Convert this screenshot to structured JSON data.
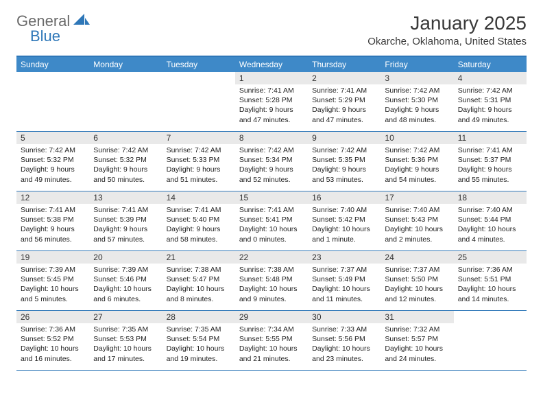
{
  "brand": {
    "text1": "General",
    "text2": "Blue"
  },
  "title": "January 2025",
  "location": "Okarche, Oklahoma, United States",
  "colors": {
    "header_bar": "#3e89c8",
    "rule": "#2e77b8",
    "daynum_bg": "#e9e9e9",
    "logo_gray": "#6a6a6a",
    "logo_blue": "#2e77b8"
  },
  "day_names": [
    "Sunday",
    "Monday",
    "Tuesday",
    "Wednesday",
    "Thursday",
    "Friday",
    "Saturday"
  ],
  "weeks": [
    [
      null,
      null,
      null,
      {
        "n": "1",
        "sr": "7:41 AM",
        "ss": "5:28 PM",
        "dl1": "Daylight: 9 hours",
        "dl2": "and 47 minutes."
      },
      {
        "n": "2",
        "sr": "7:41 AM",
        "ss": "5:29 PM",
        "dl1": "Daylight: 9 hours",
        "dl2": "and 47 minutes."
      },
      {
        "n": "3",
        "sr": "7:42 AM",
        "ss": "5:30 PM",
        "dl1": "Daylight: 9 hours",
        "dl2": "and 48 minutes."
      },
      {
        "n": "4",
        "sr": "7:42 AM",
        "ss": "5:31 PM",
        "dl1": "Daylight: 9 hours",
        "dl2": "and 49 minutes."
      }
    ],
    [
      {
        "n": "5",
        "sr": "7:42 AM",
        "ss": "5:32 PM",
        "dl1": "Daylight: 9 hours",
        "dl2": "and 49 minutes."
      },
      {
        "n": "6",
        "sr": "7:42 AM",
        "ss": "5:32 PM",
        "dl1": "Daylight: 9 hours",
        "dl2": "and 50 minutes."
      },
      {
        "n": "7",
        "sr": "7:42 AM",
        "ss": "5:33 PM",
        "dl1": "Daylight: 9 hours",
        "dl2": "and 51 minutes."
      },
      {
        "n": "8",
        "sr": "7:42 AM",
        "ss": "5:34 PM",
        "dl1": "Daylight: 9 hours",
        "dl2": "and 52 minutes."
      },
      {
        "n": "9",
        "sr": "7:42 AM",
        "ss": "5:35 PM",
        "dl1": "Daylight: 9 hours",
        "dl2": "and 53 minutes."
      },
      {
        "n": "10",
        "sr": "7:42 AM",
        "ss": "5:36 PM",
        "dl1": "Daylight: 9 hours",
        "dl2": "and 54 minutes."
      },
      {
        "n": "11",
        "sr": "7:41 AM",
        "ss": "5:37 PM",
        "dl1": "Daylight: 9 hours",
        "dl2": "and 55 minutes."
      }
    ],
    [
      {
        "n": "12",
        "sr": "7:41 AM",
        "ss": "5:38 PM",
        "dl1": "Daylight: 9 hours",
        "dl2": "and 56 minutes."
      },
      {
        "n": "13",
        "sr": "7:41 AM",
        "ss": "5:39 PM",
        "dl1": "Daylight: 9 hours",
        "dl2": "and 57 minutes."
      },
      {
        "n": "14",
        "sr": "7:41 AM",
        "ss": "5:40 PM",
        "dl1": "Daylight: 9 hours",
        "dl2": "and 58 minutes."
      },
      {
        "n": "15",
        "sr": "7:41 AM",
        "ss": "5:41 PM",
        "dl1": "Daylight: 10 hours",
        "dl2": "and 0 minutes."
      },
      {
        "n": "16",
        "sr": "7:40 AM",
        "ss": "5:42 PM",
        "dl1": "Daylight: 10 hours",
        "dl2": "and 1 minute."
      },
      {
        "n": "17",
        "sr": "7:40 AM",
        "ss": "5:43 PM",
        "dl1": "Daylight: 10 hours",
        "dl2": "and 2 minutes."
      },
      {
        "n": "18",
        "sr": "7:40 AM",
        "ss": "5:44 PM",
        "dl1": "Daylight: 10 hours",
        "dl2": "and 4 minutes."
      }
    ],
    [
      {
        "n": "19",
        "sr": "7:39 AM",
        "ss": "5:45 PM",
        "dl1": "Daylight: 10 hours",
        "dl2": "and 5 minutes."
      },
      {
        "n": "20",
        "sr": "7:39 AM",
        "ss": "5:46 PM",
        "dl1": "Daylight: 10 hours",
        "dl2": "and 6 minutes."
      },
      {
        "n": "21",
        "sr": "7:38 AM",
        "ss": "5:47 PM",
        "dl1": "Daylight: 10 hours",
        "dl2": "and 8 minutes."
      },
      {
        "n": "22",
        "sr": "7:38 AM",
        "ss": "5:48 PM",
        "dl1": "Daylight: 10 hours",
        "dl2": "and 9 minutes."
      },
      {
        "n": "23",
        "sr": "7:37 AM",
        "ss": "5:49 PM",
        "dl1": "Daylight: 10 hours",
        "dl2": "and 11 minutes."
      },
      {
        "n": "24",
        "sr": "7:37 AM",
        "ss": "5:50 PM",
        "dl1": "Daylight: 10 hours",
        "dl2": "and 12 minutes."
      },
      {
        "n": "25",
        "sr": "7:36 AM",
        "ss": "5:51 PM",
        "dl1": "Daylight: 10 hours",
        "dl2": "and 14 minutes."
      }
    ],
    [
      {
        "n": "26",
        "sr": "7:36 AM",
        "ss": "5:52 PM",
        "dl1": "Daylight: 10 hours",
        "dl2": "and 16 minutes."
      },
      {
        "n": "27",
        "sr": "7:35 AM",
        "ss": "5:53 PM",
        "dl1": "Daylight: 10 hours",
        "dl2": "and 17 minutes."
      },
      {
        "n": "28",
        "sr": "7:35 AM",
        "ss": "5:54 PM",
        "dl1": "Daylight: 10 hours",
        "dl2": "and 19 minutes."
      },
      {
        "n": "29",
        "sr": "7:34 AM",
        "ss": "5:55 PM",
        "dl1": "Daylight: 10 hours",
        "dl2": "and 21 minutes."
      },
      {
        "n": "30",
        "sr": "7:33 AM",
        "ss": "5:56 PM",
        "dl1": "Daylight: 10 hours",
        "dl2": "and 23 minutes."
      },
      {
        "n": "31",
        "sr": "7:32 AM",
        "ss": "5:57 PM",
        "dl1": "Daylight: 10 hours",
        "dl2": "and 24 minutes."
      },
      null
    ]
  ]
}
